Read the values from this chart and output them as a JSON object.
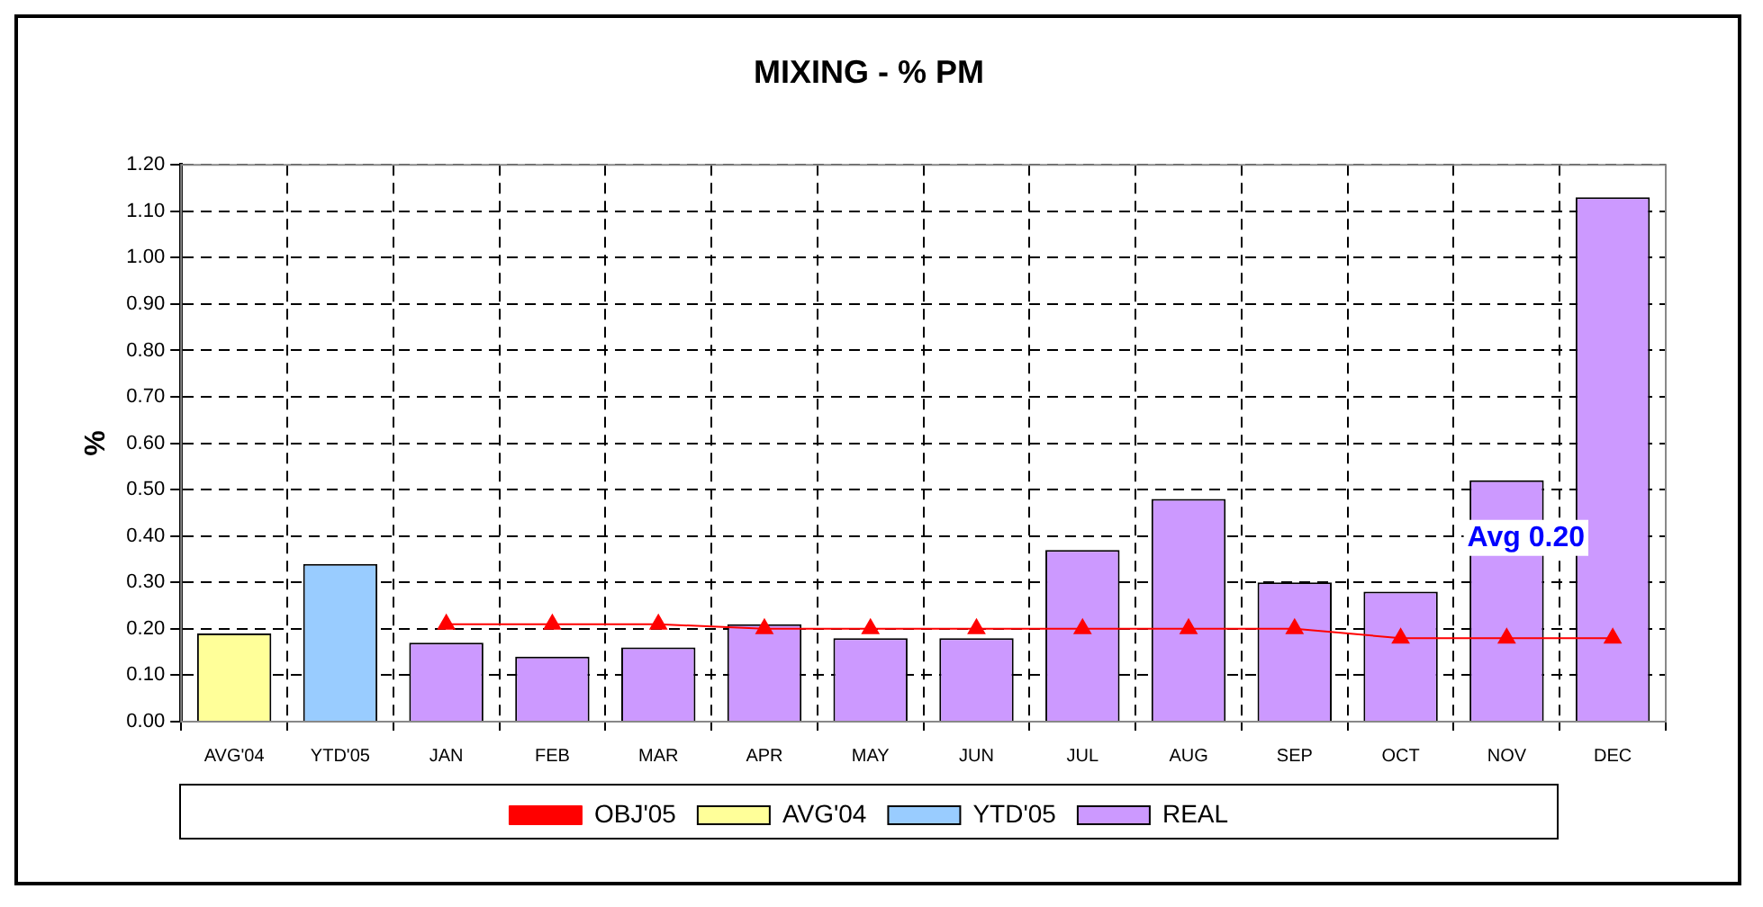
{
  "chart_data": {
    "type": "bar",
    "title": "MIXING - % PM",
    "ylabel": "%",
    "categories": [
      "AVG'04",
      "YTD'05",
      "JAN",
      "FEB",
      "MAR",
      "APR",
      "MAY",
      "JUN",
      "JUL",
      "AUG",
      "SEP",
      "OCT",
      "NOV",
      "DEC"
    ],
    "series": [
      {
        "name": "AVG'04",
        "color": "#ffff99",
        "values": [
          0.19,
          null,
          null,
          null,
          null,
          null,
          null,
          null,
          null,
          null,
          null,
          null,
          null,
          null
        ]
      },
      {
        "name": "YTD'05",
        "color": "#99ccff",
        "values": [
          null,
          0.34,
          null,
          null,
          null,
          null,
          null,
          null,
          null,
          null,
          null,
          null,
          null,
          null
        ]
      },
      {
        "name": "REAL",
        "color": "#cc99ff",
        "values": [
          null,
          null,
          0.17,
          0.14,
          0.16,
          0.21,
          0.18,
          0.18,
          0.37,
          0.48,
          0.3,
          0.28,
          0.52,
          1.13
        ]
      },
      {
        "name": "OBJ'05",
        "type": "line",
        "color": "#ff0000",
        "marker": "triangle",
        "values": [
          null,
          null,
          0.21,
          0.21,
          0.21,
          0.2,
          0.2,
          0.2,
          0.2,
          0.2,
          0.2,
          0.18,
          0.18,
          0.18
        ]
      }
    ],
    "ylim": [
      0,
      1.2
    ],
    "yticks": [
      {
        "value": 0,
        "label": "0.00"
      },
      {
        "value": 0.1,
        "label": "0.10"
      },
      {
        "value": 0.2,
        "label": "0.20"
      },
      {
        "value": 0.3,
        "label": "0.30"
      },
      {
        "value": 0.4,
        "label": "0.40"
      },
      {
        "value": 0.5,
        "label": "0.50"
      },
      {
        "value": 0.6,
        "label": "0.60"
      },
      {
        "value": 0.7,
        "label": "0.70"
      },
      {
        "value": 0.8,
        "label": "0.80"
      },
      {
        "value": 0.9,
        "label": "0.90"
      },
      {
        "value": 1,
        "label": "1.00"
      },
      {
        "value": 1.1,
        "label": "1.10"
      },
      {
        "value": 1.2,
        "label": "1.20"
      }
    ],
    "grid": true,
    "legend": "bottom",
    "annotations": [
      "Avg 0.20"
    ]
  }
}
